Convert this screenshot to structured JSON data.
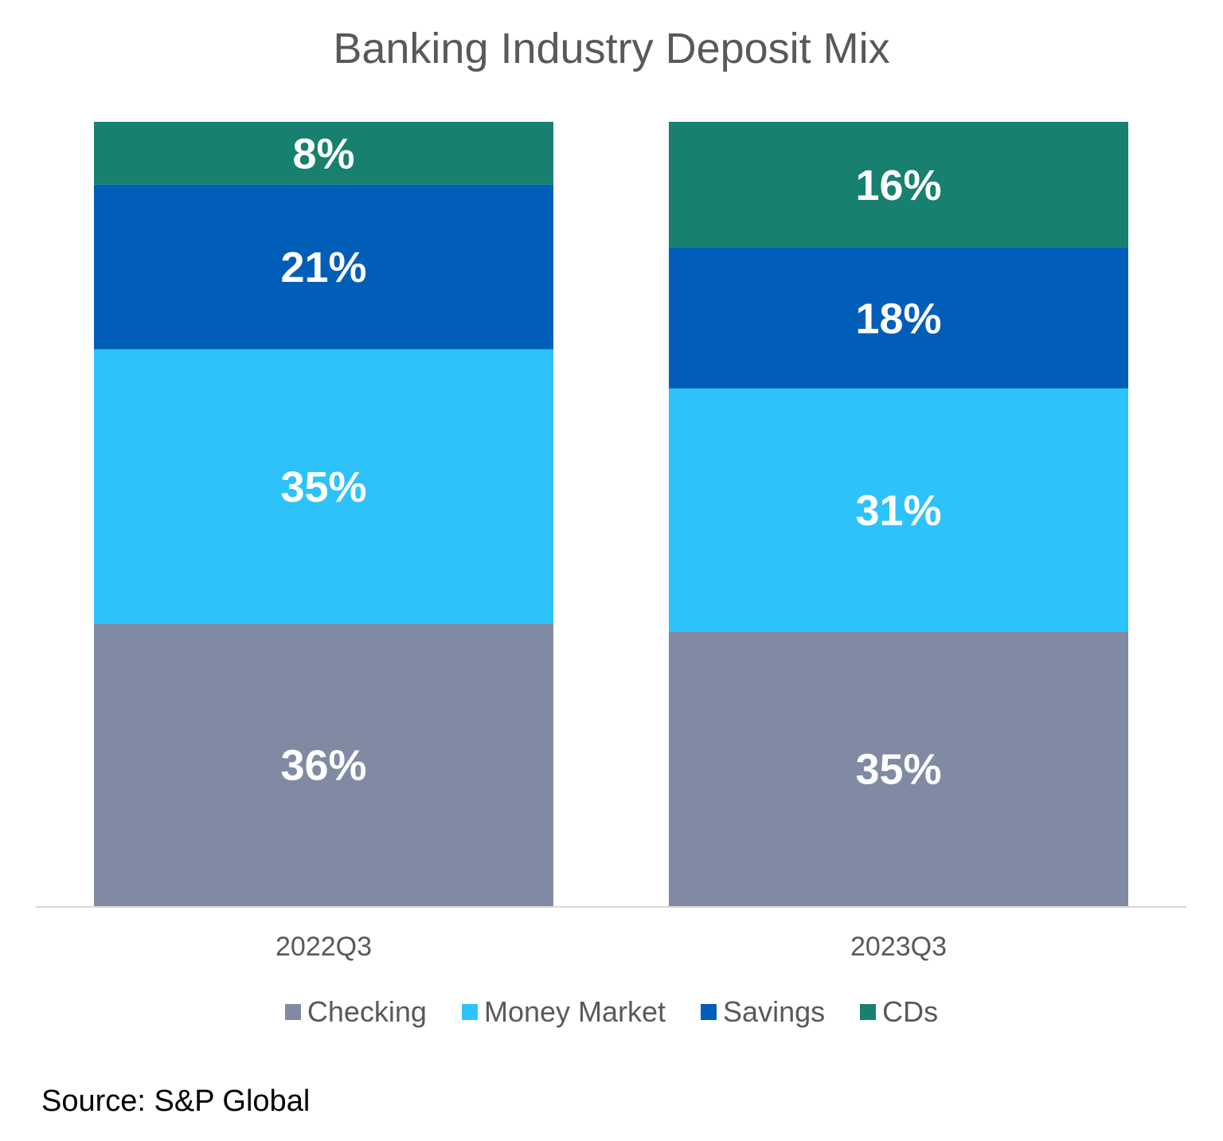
{
  "chart_data": {
    "type": "bar",
    "stacked": true,
    "title": "Banking Industry Deposit Mix",
    "categories": [
      "2022Q3",
      "2023Q3"
    ],
    "series": [
      {
        "name": "Checking",
        "values": [
          36,
          35
        ],
        "color": "#808BA3"
      },
      {
        "name": "Money Market",
        "values": [
          35,
          31
        ],
        "color": "#2EC2FB"
      },
      {
        "name": "Savings",
        "values": [
          21,
          18
        ],
        "color": "#005EB8"
      },
      {
        "name": "CDs",
        "values": [
          8,
          16
        ],
        "color": "#17806F"
      }
    ],
    "data_labels": [
      [
        "36%",
        "35%"
      ],
      [
        "35%",
        "31%"
      ],
      [
        "21%",
        "18%"
      ],
      [
        "8%",
        "16%"
      ]
    ],
    "ylim": [
      0,
      100
    ],
    "grid": false,
    "legend_position": "bottom",
    "xlabel": "",
    "ylabel": ""
  },
  "source": "Source: S&P Global"
}
